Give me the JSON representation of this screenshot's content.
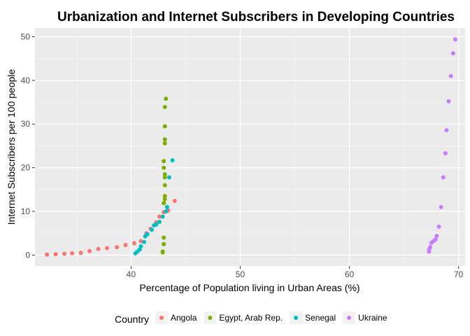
{
  "chart_data": {
    "type": "scatter",
    "title": "Urbanization and Internet Subscribers in Developing Countries",
    "xlabel": "Percentage of Population living in Urban Areas (%)",
    "ylabel": "Internet Subscribers per 100 people",
    "xlim": [
      31.2,
      70.6
    ],
    "ylim": [
      -2.5,
      52
    ],
    "x_ticks": [
      40,
      50,
      60,
      70
    ],
    "y_ticks": [
      0,
      10,
      20,
      30,
      40,
      50
    ],
    "grid": true,
    "legend": {
      "title": "Country",
      "position": "bottom"
    },
    "series": [
      {
        "name": "Angola",
        "color": "#F8766D",
        "points": [
          [
            32.3,
            0.1
          ],
          [
            33.1,
            0.2
          ],
          [
            33.9,
            0.3
          ],
          [
            34.6,
            0.4
          ],
          [
            35.4,
            0.5
          ],
          [
            36.2,
            0.9
          ],
          [
            37.0,
            1.4
          ],
          [
            37.8,
            1.6
          ],
          [
            38.7,
            1.8
          ],
          [
            39.5,
            2.3
          ],
          [
            40.3,
            2.7
          ],
          [
            40.9,
            3.2
          ],
          [
            41.4,
            5.0
          ],
          [
            41.8,
            6.0
          ],
          [
            42.3,
            7.5
          ],
          [
            42.6,
            8.8
          ],
          [
            43.0,
            9.8
          ],
          [
            43.4,
            10.2
          ],
          [
            44.0,
            12.4
          ]
        ]
      },
      {
        "name": "Egypt, Arab Rep.",
        "color": "#7CAE00",
        "points": [
          [
            42.9,
            0.6
          ],
          [
            42.9,
            0.8
          ],
          [
            43.0,
            2.5
          ],
          [
            43.0,
            4.0
          ],
          [
            43.0,
            11.9
          ],
          [
            43.1,
            12.8
          ],
          [
            43.1,
            13.5
          ],
          [
            43.1,
            16.0
          ],
          [
            43.1,
            17.8
          ],
          [
            43.1,
            18.5
          ],
          [
            43.0,
            20.0
          ],
          [
            43.0,
            21.5
          ],
          [
            43.1,
            25.6
          ],
          [
            43.1,
            26.5
          ],
          [
            43.1,
            29.5
          ],
          [
            43.1,
            33.9
          ],
          [
            43.2,
            35.8
          ]
        ]
      },
      {
        "name": "Senegal",
        "color": "#00BFC4",
        "points": [
          [
            40.4,
            0.4
          ],
          [
            40.6,
            0.8
          ],
          [
            40.8,
            1.3
          ],
          [
            40.9,
            2.0
          ],
          [
            41.2,
            3.0
          ],
          [
            41.3,
            4.3
          ],
          [
            41.5,
            4.8
          ],
          [
            41.9,
            5.8
          ],
          [
            42.1,
            6.8
          ],
          [
            42.3,
            7.0
          ],
          [
            42.6,
            7.6
          ],
          [
            42.9,
            8.8
          ],
          [
            43.2,
            10.0
          ],
          [
            43.3,
            11.0
          ],
          [
            43.5,
            17.8
          ],
          [
            43.8,
            21.7
          ]
        ]
      },
      {
        "name": "Ukraine",
        "color": "#C77CFF",
        "points": [
          [
            67.3,
            0.8
          ],
          [
            67.3,
            1.2
          ],
          [
            67.4,
            1.8
          ],
          [
            67.5,
            2.8
          ],
          [
            67.7,
            3.2
          ],
          [
            67.9,
            3.6
          ],
          [
            68.0,
            4.4
          ],
          [
            68.2,
            6.5
          ],
          [
            68.4,
            11.0
          ],
          [
            68.6,
            17.8
          ],
          [
            68.8,
            23.3
          ],
          [
            68.9,
            28.6
          ],
          [
            69.1,
            35.2
          ],
          [
            69.3,
            41.0
          ],
          [
            69.5,
            46.2
          ],
          [
            69.7,
            49.4
          ]
        ]
      }
    ]
  }
}
